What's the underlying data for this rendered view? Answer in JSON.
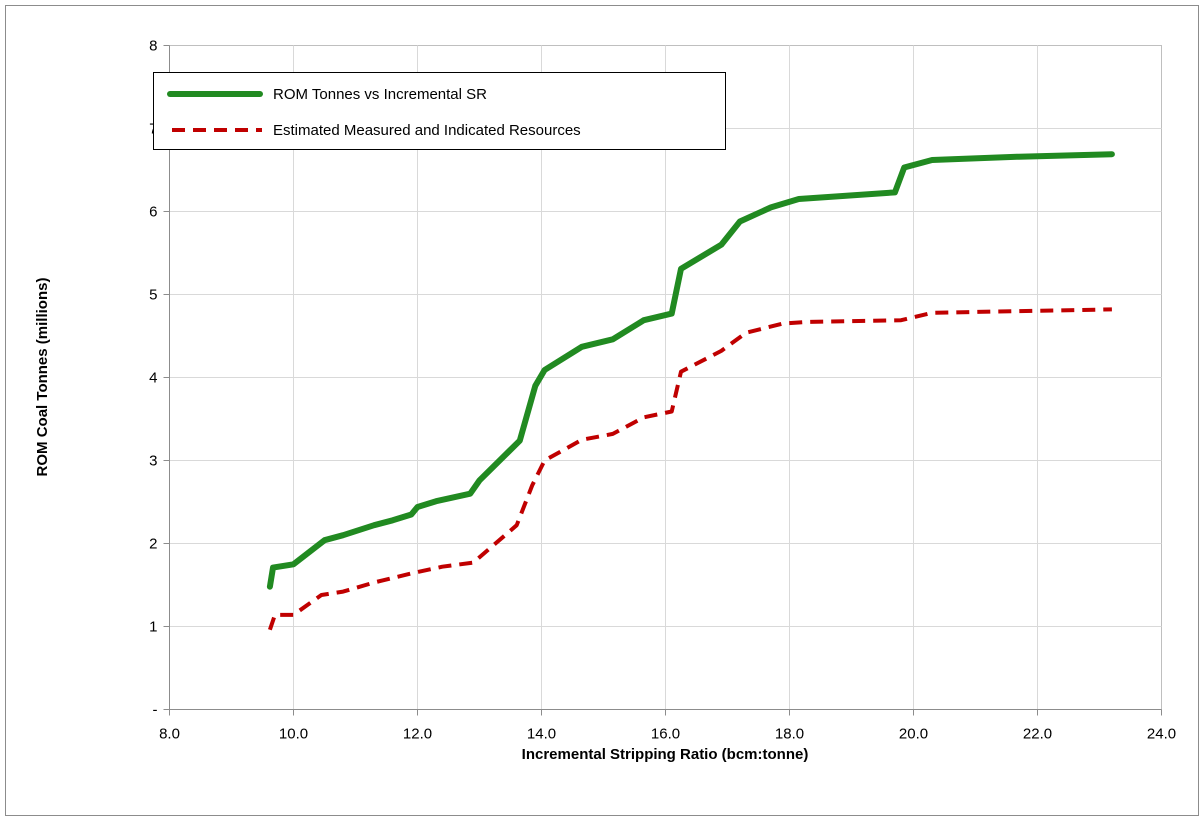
{
  "chart_data": {
    "type": "line",
    "title": "",
    "xlabel": "Incremental Stripping Ratio (bcm:tonne)",
    "ylabel": "ROM Coal Tonnes (millions)",
    "xlim": [
      8,
      24
    ],
    "ylim": [
      0,
      8
    ],
    "x_ticks": [
      8,
      10,
      12,
      14,
      16,
      18,
      20,
      22,
      24
    ],
    "x_tick_labels": [
      "8.0",
      "10.0",
      "12.0",
      "14.0",
      "16.0",
      "18.0",
      "20.0",
      "22.0",
      "24.0"
    ],
    "y_ticks": [
      0,
      1,
      2,
      3,
      4,
      5,
      6,
      7,
      8
    ],
    "y_tick_labels": [
      "-",
      "1",
      "2",
      "3",
      "4",
      "5",
      "6",
      "7",
      "8"
    ],
    "grid": true,
    "legend_position": "top-left",
    "series": [
      {
        "name": "ROM Tonnes vs Incremental SR",
        "color": "#218a21",
        "style": "solid",
        "points": [
          [
            9.62,
            1.48
          ],
          [
            9.67,
            1.71
          ],
          [
            10.0,
            1.75
          ],
          [
            10.5,
            2.04
          ],
          [
            10.8,
            2.1
          ],
          [
            11.3,
            2.22
          ],
          [
            11.6,
            2.28
          ],
          [
            11.9,
            2.35
          ],
          [
            12.0,
            2.44
          ],
          [
            12.3,
            2.51
          ],
          [
            12.85,
            2.6
          ],
          [
            13.0,
            2.76
          ],
          [
            13.65,
            3.24
          ],
          [
            13.9,
            3.9
          ],
          [
            14.05,
            4.09
          ],
          [
            14.65,
            4.37
          ],
          [
            15.15,
            4.46
          ],
          [
            15.65,
            4.69
          ],
          [
            16.1,
            4.77
          ],
          [
            16.25,
            5.31
          ],
          [
            16.9,
            5.6
          ],
          [
            17.2,
            5.88
          ],
          [
            17.7,
            6.05
          ],
          [
            18.15,
            6.15
          ],
          [
            19.7,
            6.23
          ],
          [
            19.85,
            6.53
          ],
          [
            20.3,
            6.62
          ],
          [
            21.7,
            6.66
          ],
          [
            23.2,
            6.69
          ]
        ]
      },
      {
        "name": "Estimated Measured and Indicated Resources",
        "color": "#c00000",
        "style": "dashed",
        "points": [
          [
            9.62,
            0.96
          ],
          [
            9.7,
            1.14
          ],
          [
            10.0,
            1.14
          ],
          [
            10.45,
            1.38
          ],
          [
            10.8,
            1.42
          ],
          [
            11.3,
            1.53
          ],
          [
            11.9,
            1.64
          ],
          [
            12.4,
            1.72
          ],
          [
            12.9,
            1.77
          ],
          [
            13.6,
            2.22
          ],
          [
            13.85,
            2.7
          ],
          [
            14.05,
            3.0
          ],
          [
            14.65,
            3.25
          ],
          [
            15.15,
            3.32
          ],
          [
            15.65,
            3.52
          ],
          [
            16.1,
            3.59
          ],
          [
            16.25,
            4.07
          ],
          [
            16.9,
            4.32
          ],
          [
            17.3,
            4.54
          ],
          [
            17.9,
            4.65
          ],
          [
            18.3,
            4.67
          ],
          [
            19.8,
            4.69
          ],
          [
            20.3,
            4.78
          ],
          [
            21.7,
            4.8
          ],
          [
            23.2,
            4.82
          ]
        ]
      }
    ]
  }
}
